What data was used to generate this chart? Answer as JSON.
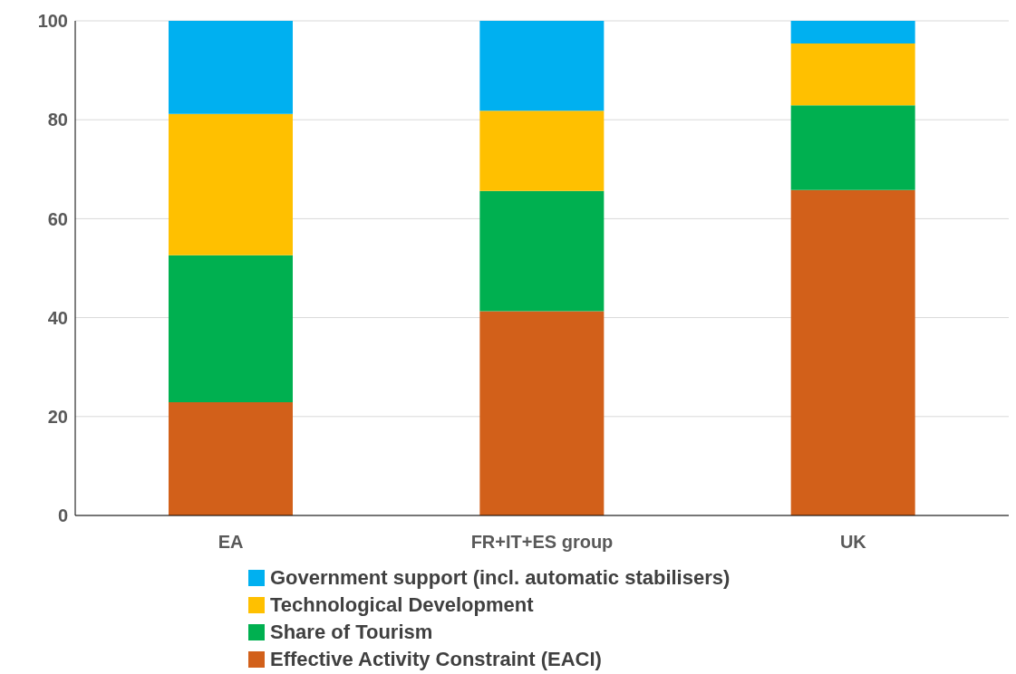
{
  "chart_data": {
    "type": "bar",
    "stacked": true,
    "categories": [
      "EA",
      "FR+IT+ES group",
      "UK"
    ],
    "series": [
      {
        "name": "Effective Activity Constraint (EACI)",
        "color": "#d2601a",
        "values": [
          22.9,
          41.3,
          65.8
        ]
      },
      {
        "name": "Share of Tourism",
        "color": "#00b050",
        "values": [
          29.7,
          24.3,
          17.1
        ]
      },
      {
        "name": "Technological Development",
        "color": "#ffc000",
        "values": [
          28.6,
          16.2,
          12.5
        ]
      },
      {
        "name": "Government support (incl. automatic stabilisers)",
        "color": "#00b0f0",
        "values": [
          18.8,
          18.2,
          4.6
        ]
      }
    ],
    "ylim": [
      0,
      100
    ],
    "yticks": [
      0,
      20,
      40,
      60,
      80,
      100
    ],
    "grid": "y",
    "legend": "bottom"
  }
}
